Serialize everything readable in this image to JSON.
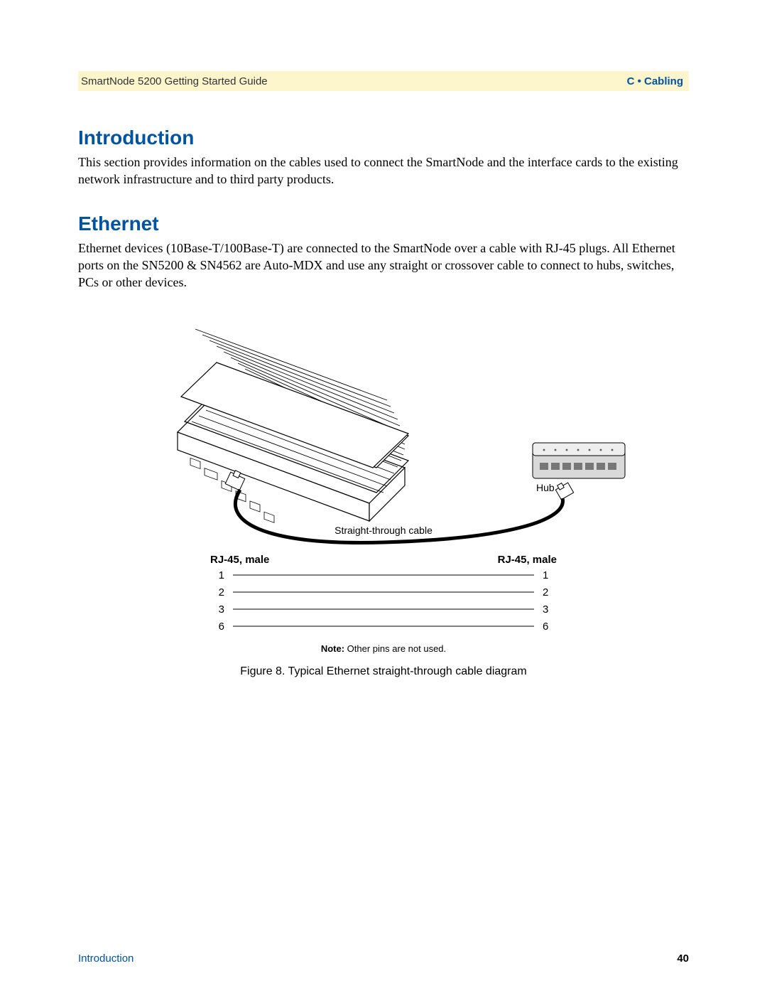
{
  "header": {
    "doc_title": "SmartNode 5200 Getting Started Guide",
    "section": "C • Cabling"
  },
  "sections": {
    "intro": {
      "heading": "Introduction",
      "text": "This section provides information on the cables used to connect the SmartNode and the interface cards to the existing network infrastructure and to third party products."
    },
    "ethernet": {
      "heading": "Ethernet",
      "text": "Ethernet devices (10Base-T/100Base-T) are connected to the SmartNode over a cable with RJ-45 plugs. All Ethernet ports on the SN5200 & SN4562 are Auto-MDX and use any straight or crossover cable to connect to hubs, switches, PCs or other devices."
    }
  },
  "figure": {
    "caption": "Figure 8. Typical Ethernet straight-through cable diagram",
    "labels": {
      "hub": "Hub",
      "cable_type": "Straight-through cable",
      "left_header": "RJ-45, male",
      "right_header": "RJ-45, male",
      "note_prefix": "Note:",
      "note_text": " Other pins are not used."
    },
    "pinout": {
      "left_pins": [
        "1",
        "2",
        "3",
        "6"
      ],
      "right_pins": [
        "1",
        "2",
        "3",
        "6"
      ],
      "line_y": [
        13,
        37,
        61,
        85
      ],
      "line_x_start": 38,
      "line_x_end": 462,
      "line_color": "#000000",
      "line_width": 1
    },
    "style": {
      "heading_color": "#0053a1",
      "header_bg": "#fdf5cc",
      "device_fill": "#ffffff",
      "device_stroke": "#000000",
      "cable_color": "#000000",
      "cable_width": 5,
      "hub_fill": "#d9d9d9",
      "hub_port_fill": "#777777",
      "font_family": "Arial, Helvetica, sans-serif",
      "pin_font_size": 15,
      "pin_header_font_size": 15,
      "note_font_size": 13,
      "caption_font_size": 16,
      "label_font_size": 14
    }
  },
  "footer": {
    "left": "Introduction",
    "page": "40"
  }
}
